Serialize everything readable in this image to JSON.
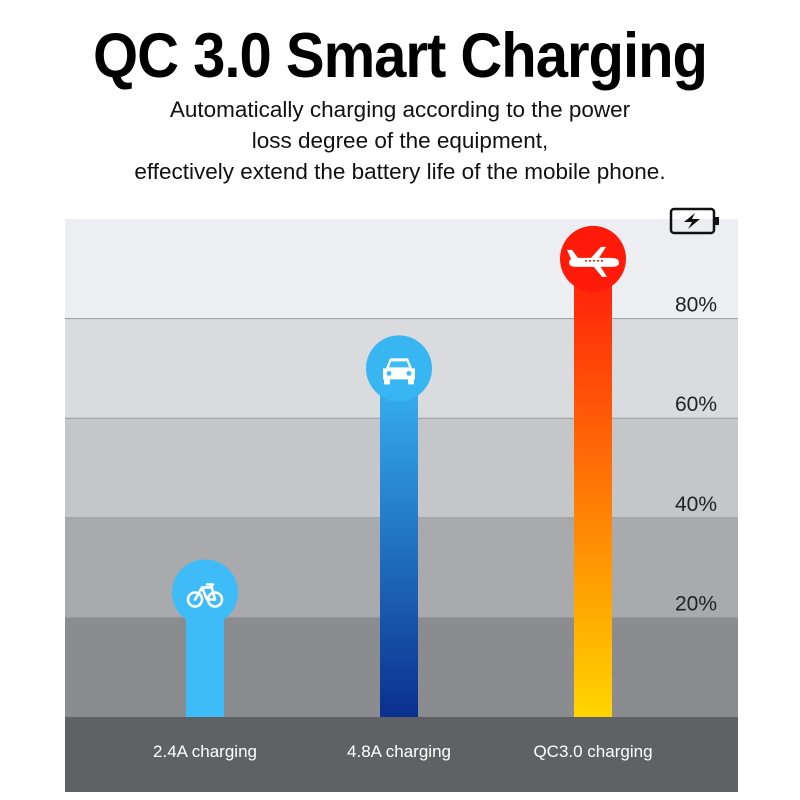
{
  "header": {
    "title": "QC 3.0 Smart Charging",
    "subtitle_lines": [
      "Automatically charging according to the power",
      "loss degree of the equipment,",
      "effectively extend the battery life of the mobile phone."
    ]
  },
  "chart_data": {
    "type": "bar",
    "categories": [
      "2.4A charging",
      "4.8A charging",
      "QC3.0 charging"
    ],
    "values": [
      25,
      70,
      92
    ],
    "ytick_labels": [
      "20%",
      "40%",
      "60%",
      "80%"
    ],
    "ytick_values": [
      20,
      40,
      60,
      80
    ],
    "ylim": [
      0,
      100
    ],
    "icons": [
      "bicycle-icon",
      "car-icon",
      "airplane-icon"
    ],
    "axis_icon": "battery-charging-icon",
    "colors": {
      "bar1": "#3dbcf8",
      "bar2_top": "#38b6f2",
      "bar2_bottom": "#0b2f8f",
      "bar3_top": "#ff1a0a",
      "bar3_bottom": "#ffd500",
      "band_colors": [
        "#8a8c8f",
        "#a8aaad",
        "#c4c6c9",
        "#d9dbde",
        "#eceef1"
      ],
      "category_band": "#5f6164"
    }
  }
}
